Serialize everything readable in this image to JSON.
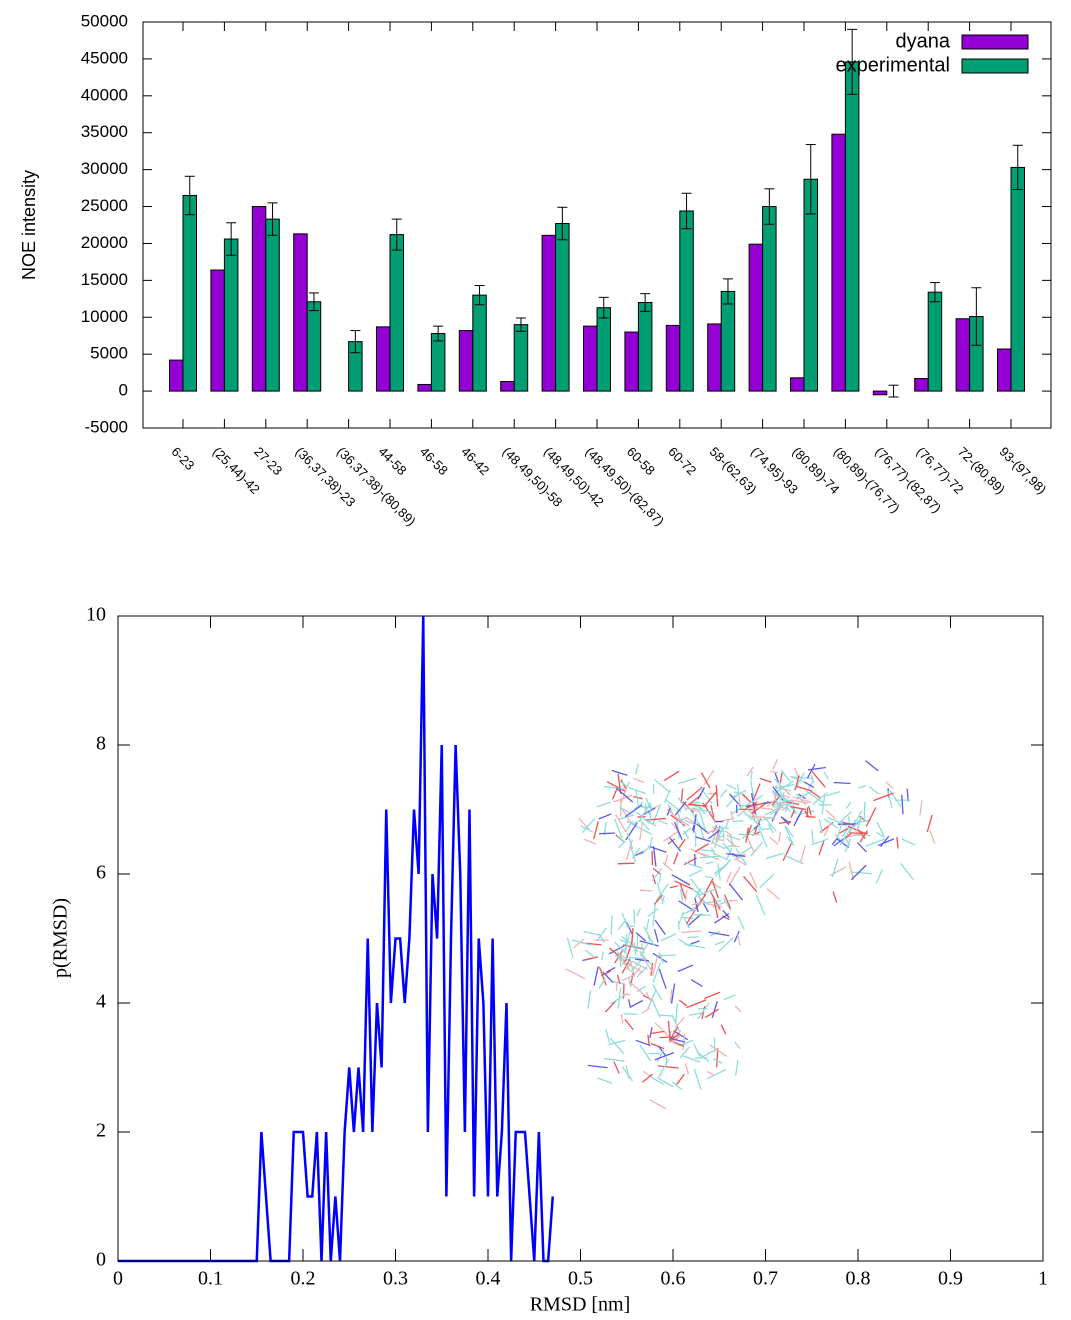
{
  "chart_data": [
    {
      "type": "bar",
      "y_label": "NOE intensity",
      "categories": [
        "6-23",
        "(25,44)-42",
        "27-23",
        "(36,37,38)-23",
        "(36,37,38)-(80,89)",
        "44-58",
        "46-58",
        "46-42",
        "(48,49,50)-58",
        "(48,49,50)-42",
        "(48,49,50)-(82,87)",
        "60-58",
        "60-72",
        "58-(62,63)",
        "(74,95)-93",
        "(80,89)-74",
        "(80,89)-(76,77)",
        "(76,77)-(82,87)",
        "(76,77)-72",
        "72-(80,89)",
        "93-(97,98)"
      ],
      "series": [
        {
          "name": "dyana",
          "color": "#9400d3",
          "values": [
            4200,
            16400,
            25000,
            21300,
            0,
            8700,
            900,
            8200,
            1300,
            21100,
            8800,
            8000,
            8900,
            9100,
            19900,
            1800,
            34800,
            -500,
            1700,
            9800,
            5700
          ]
        },
        {
          "name": "experimental",
          "color": "#009e73",
          "values": [
            26500,
            20600,
            23300,
            12100,
            6700,
            21200,
            7800,
            13000,
            9000,
            22700,
            11300,
            12000,
            24400,
            13500,
            25000,
            28700,
            44600,
            0,
            13400,
            10100,
            30300
          ],
          "errors": [
            2600,
            2200,
            2200,
            1200,
            1500,
            2100,
            1000,
            1300,
            900,
            2200,
            1400,
            1200,
            2400,
            1700,
            2400,
            4700,
            4400,
            800,
            1300,
            3900,
            3000
          ]
        }
      ],
      "ylim": [
        -5000,
        50000
      ],
      "yticks": [
        -5000,
        0,
        5000,
        10000,
        15000,
        20000,
        25000,
        30000,
        35000,
        40000,
        45000,
        50000
      ],
      "legend": "top-right"
    },
    {
      "type": "line",
      "x_label": "RMSD [nm]",
      "y_label": "p(RMSD)",
      "x": [
        0,
        0.145,
        0.15,
        0.155,
        0.16,
        0.165,
        0.17,
        0.175,
        0.18,
        0.185,
        0.19,
        0.195,
        0.2,
        0.205,
        0.21,
        0.215,
        0.22,
        0.225,
        0.23,
        0.235,
        0.24,
        0.245,
        0.25,
        0.255,
        0.26,
        0.265,
        0.27,
        0.275,
        0.28,
        0.285,
        0.29,
        0.295,
        0.3,
        0.305,
        0.31,
        0.315,
        0.32,
        0.325,
        0.33,
        0.335,
        0.34,
        0.345,
        0.35,
        0.355,
        0.36,
        0.365,
        0.37,
        0.375,
        0.38,
        0.385,
        0.39,
        0.395,
        0.4,
        0.405,
        0.41,
        0.415,
        0.42,
        0.425,
        0.43,
        0.435,
        0.44,
        0.445,
        0.45,
        0.455,
        0.46,
        0.465,
        0.47
      ],
      "values": [
        0,
        0,
        0,
        2,
        1,
        0,
        0,
        0,
        0,
        0,
        2,
        2,
        2,
        1,
        1,
        2,
        0,
        2,
        0,
        1,
        0,
        2,
        3,
        2,
        3,
        2,
        5,
        2,
        4,
        3,
        7,
        4,
        5,
        5,
        4,
        5,
        7,
        6,
        10,
        2,
        6,
        5,
        8,
        1,
        5,
        8,
        6,
        2,
        7,
        1,
        5,
        4,
        1,
        5,
        1,
        2,
        4,
        0,
        2,
        2,
        2,
        1,
        0,
        2,
        0,
        0,
        1
      ],
      "color": "#0000ff",
      "xlim": [
        0,
        1
      ],
      "xticks": [
        0,
        0.1,
        0.2,
        0.3,
        0.4,
        0.5,
        0.6,
        0.7,
        0.8,
        0.9,
        1
      ],
      "ylim": [
        0,
        10
      ],
      "yticks": [
        0,
        2,
        4,
        6,
        8,
        10
      ]
    }
  ]
}
